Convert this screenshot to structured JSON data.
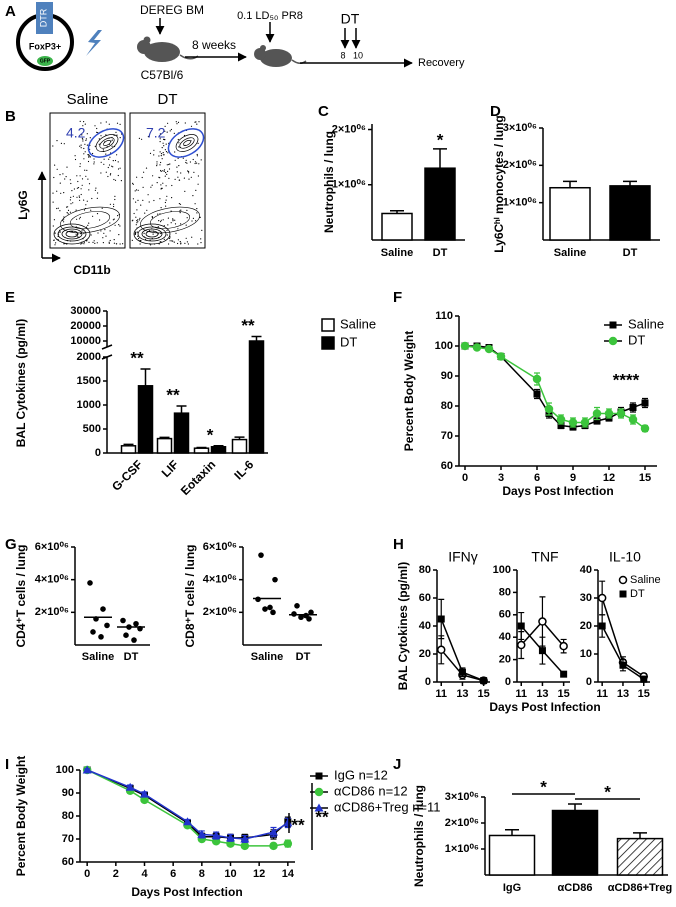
{
  "figure": {
    "panels": [
      "A",
      "B",
      "C",
      "D",
      "E",
      "F",
      "G",
      "H",
      "I",
      "J"
    ]
  },
  "panel_a": {
    "dtr": "DTR",
    "foxp3": "FoxP3+",
    "gfp": "GFP",
    "transfer": "DEREG BM",
    "recipient": "C57Bl/6",
    "interval": "8 weeks",
    "infection": "0.1 LD₅₀ PR8",
    "treatment": "DT",
    "days": [
      "8",
      "10"
    ],
    "outcome": "Recovery"
  },
  "panel_b": {
    "plots": [
      {
        "title": "Saline",
        "gate": 4.2
      },
      {
        "title": "DT",
        "gate": 7.2
      }
    ],
    "y_label": "Ly6G",
    "x_label": "CD11b"
  },
  "chart_data": [
    {
      "type": "bar",
      "y_label": "Neutrophils / lung",
      "categories": [
        "Saline",
        "DT"
      ],
      "values": [
        480000,
        1300000
      ],
      "errors": [
        50000,
        350000
      ],
      "colors": [
        "#ffffff",
        "#000000"
      ],
      "value_annotations": [
        null,
        "*"
      ],
      "ylim": [
        0,
        2100000
      ],
      "yticks": [
        {
          "value": 1000000,
          "label": "1×10⁰⁶"
        },
        {
          "value": 2000000,
          "label": "2×10⁰⁶"
        }
      ]
    },
    {
      "type": "bar",
      "y_label": "Ly6Cʰⁱ monocytes / lung",
      "categories": [
        "Saline",
        "DT"
      ],
      "values": [
        1400000,
        1450000
      ],
      "errors": [
        170000,
        120000
      ],
      "colors": [
        "#ffffff",
        "#000000"
      ],
      "ylim": [
        0,
        3000000
      ],
      "yticks": [
        {
          "value": 1000000,
          "label": "1×10⁰⁶"
        },
        {
          "value": 2000000,
          "label": "2×10⁰⁶"
        },
        {
          "value": 3000000,
          "label": "3×10⁰⁶"
        }
      ]
    },
    {
      "type": "grouped_bar",
      "y_label": "BAL Cytokines (pg/ml)",
      "categories": [
        "G-CSF",
        "LIF",
        "Eotaxin",
        "IL-6"
      ],
      "series": [
        {
          "name": "Saline",
          "color": "#ffffff",
          "values": [
            150,
            300,
            100,
            280
          ],
          "errors": [
            30,
            25,
            15,
            50
          ]
        },
        {
          "name": "DT",
          "color": "#000000",
          "values": [
            1400,
            830,
            130,
            10000
          ],
          "errors": [
            350,
            150,
            20,
            3000
          ]
        }
      ],
      "annotations": [
        "**",
        "**",
        "*",
        "**"
      ],
      "ylim": [
        0,
        30000
      ],
      "ybreak": [
        2000,
        6000
      ],
      "yticks": [
        0,
        500,
        1000,
        1500,
        2000,
        10000,
        20000,
        30000
      ],
      "legend": "right"
    },
    {
      "type": "line",
      "x_label": "Days Post Infection",
      "y_label": "Percent Body Weight",
      "x": [
        0,
        1,
        2,
        3,
        6,
        7,
        8,
        9,
        10,
        11,
        12,
        13,
        14,
        15
      ],
      "series": [
        {
          "name": "Saline",
          "color": "#000000",
          "marker": "square",
          "values": [
            100,
            100,
            99.5,
            96.5,
            84,
            77.5,
            73.5,
            73,
            73.5,
            75,
            76,
            78,
            79.5,
            81
          ],
          "errors": [
            0.5,
            0.5,
            0.5,
            1,
            1.5,
            1.5,
            1,
            1,
            1,
            1,
            1,
            1.5,
            1.5,
            1.5
          ]
        },
        {
          "name": "DT",
          "color": "#3cc43c",
          "marker": "circle",
          "values": [
            100,
            99.5,
            99,
            96.5,
            89,
            79,
            75.5,
            74.5,
            74.5,
            77.5,
            77.5,
            77.5,
            75.5,
            72.5
          ],
          "errors": [
            0.5,
            0.5,
            0.5,
            1,
            2,
            2,
            1.5,
            1.5,
            1.5,
            2,
            1.5,
            1.5,
            1.5,
            1
          ]
        }
      ],
      "xlim": [
        -0.5,
        16
      ],
      "xticks": [
        0,
        3,
        6,
        9,
        12,
        15
      ],
      "ylim": [
        60,
        110
      ],
      "yticks": [
        60,
        70,
        80,
        90,
        100,
        110
      ],
      "legend": "upper right",
      "annotations": [
        "****"
      ]
    },
    {
      "type": "strip",
      "y_label": "CD4⁺T cells / lung",
      "categories": [
        "Saline",
        "DT"
      ],
      "points": [
        [
          3800000,
          2200000,
          1600000,
          1200000,
          800000,
          500000
        ],
        [
          1500000,
          1300000,
          1100000,
          1000000,
          600000,
          300000
        ]
      ],
      "means": [
        1700000,
        1100000
      ],
      "ylim": [
        0,
        6000000
      ],
      "yticks": [
        {
          "value": 2000000,
          "label": "2×10⁰⁶"
        },
        {
          "value": 4000000,
          "label": "4×10⁰⁶"
        },
        {
          "value": 6000000,
          "label": "6×10⁰⁶"
        }
      ]
    },
    {
      "type": "strip",
      "y_label": "CD8⁺T cells / lung",
      "categories": [
        "Saline",
        "DT"
      ],
      "points": [
        [
          5500000,
          4000000,
          2800000,
          2300000,
          2200000,
          2000000
        ],
        [
          2400000,
          2000000,
          1900000,
          1800000,
          1700000,
          1600000
        ]
      ],
      "means": [
        2850000,
        1850000
      ],
      "ylim": [
        0,
        6000000
      ],
      "yticks": [
        {
          "value": 2000000,
          "label": "2×10⁰⁶"
        },
        {
          "value": 4000000,
          "label": "4×10⁰⁶"
        },
        {
          "value": 6000000,
          "label": "6×10⁰⁶"
        }
      ]
    },
    {
      "type": "line",
      "title": "IFNγ",
      "y_label": "BAL Cytokines (pg/ml)",
      "x": [
        11,
        13,
        15
      ],
      "series": [
        {
          "color": "#000000",
          "marker": "open-circle",
          "values": [
            23,
            5,
            1
          ],
          "errors": [
            10,
            3,
            1
          ]
        },
        {
          "color": "#000000",
          "marker": "square",
          "values": [
            45,
            7,
            1
          ],
          "errors": [
            14,
            3,
            0.5
          ]
        }
      ],
      "xlim": [
        10.6,
        15.6
      ],
      "xticks": [
        11,
        13,
        15
      ],
      "ylim": [
        0,
        80
      ],
      "yticks": [
        0,
        20,
        40,
        60,
        80
      ]
    },
    {
      "type": "line",
      "title": "TNF",
      "x_label": "Days Post Infection",
      "x": [
        11,
        13,
        15
      ],
      "series": [
        {
          "color": "#000000",
          "marker": "open-circle",
          "values": [
            33,
            54,
            32
          ],
          "errors": [
            12,
            22,
            6
          ]
        },
        {
          "color": "#000000",
          "marker": "square",
          "values": [
            50,
            28,
            7
          ],
          "errors": [
            12,
            12,
            2
          ]
        }
      ],
      "xlim": [
        10.6,
        15.6
      ],
      "xticks": [
        11,
        13,
        15
      ],
      "ylim": [
        0,
        100
      ],
      "yticks": [
        0,
        20,
        40,
        60,
        80,
        100
      ]
    },
    {
      "type": "line",
      "title": "IL-10",
      "x": [
        11,
        13,
        15
      ],
      "series": [
        {
          "name": "Saline",
          "color": "#000000",
          "marker": "open-circle",
          "values": [
            30,
            7,
            2
          ],
          "errors": [
            6,
            2,
            1
          ]
        },
        {
          "name": "DT",
          "color": "#000000",
          "marker": "square",
          "values": [
            20,
            6,
            1
          ],
          "errors": [
            4,
            2,
            1
          ]
        }
      ],
      "xlim": [
        10.6,
        15.6
      ],
      "xticks": [
        11,
        13,
        15
      ],
      "ylim": [
        0,
        40
      ],
      "yticks": [
        0,
        10,
        20,
        30,
        40
      ],
      "legend": "upper right"
    },
    {
      "type": "line",
      "x_label": "Days Post Infection",
      "y_label": "Percent Body Weight",
      "x": [
        0,
        3,
        4,
        7,
        8,
        9,
        10,
        11,
        13,
        14
      ],
      "series": [
        {
          "name": "IgG n=12",
          "color": "#000000",
          "marker": "square",
          "values": [
            100,
            92,
            89,
            77,
            71,
            71,
            70.5,
            70.5,
            72,
            77.5
          ],
          "errors": [
            0.5,
            1,
            1,
            1,
            1.5,
            1.5,
            1.5,
            1.5,
            2,
            2
          ]
        },
        {
          "name": "αCD86 n=12",
          "color": "#3cc43c",
          "marker": "circle",
          "values": [
            100,
            91,
            87,
            76,
            70,
            69,
            68,
            67,
            67,
            68
          ],
          "errors": [
            0.5,
            1,
            1,
            1,
            1,
            1,
            1,
            1,
            1,
            1.5
          ]
        },
        {
          "name": "αCD86+Treg n=11",
          "color": "#2233cc",
          "marker": "triangle",
          "values": [
            100,
            92.5,
            89.5,
            77.5,
            72,
            71.5,
            70.5,
            70,
            73,
            77
          ],
          "errors": [
            0.5,
            1,
            1,
            1,
            1.5,
            1.5,
            1.5,
            1.5,
            2,
            2
          ]
        }
      ],
      "xlim": [
        -0.5,
        14.5
      ],
      "xticks": [
        0,
        2,
        4,
        6,
        8,
        10,
        12,
        14
      ],
      "ylim": [
        60,
        100
      ],
      "yticks": [
        60,
        70,
        80,
        90,
        100
      ],
      "legend": "upper right",
      "annotations": [
        "**",
        "**"
      ]
    },
    {
      "type": "bar",
      "y_label": "Neutrophils / lung",
      "categories": [
        "IgG",
        "αCD86",
        "αCD86+Treg"
      ],
      "values": [
        1520000,
        2480000,
        1400000
      ],
      "errors": [
        220000,
        250000,
        220000
      ],
      "colors": [
        "#ffffff",
        "#000000",
        "#ffffff"
      ],
      "hatch": [
        false,
        false,
        true
      ],
      "comparisons": [
        {
          "from": "IgG",
          "to": "αCD86",
          "text": "*"
        },
        {
          "from": "αCD86",
          "to": "αCD86+Treg",
          "text": "*"
        }
      ],
      "ylim": [
        0,
        3000000
      ],
      "yticks": [
        {
          "value": 1000000,
          "label": "1×10⁰⁶"
        },
        {
          "value": 2000000,
          "label": "2×10⁰⁶"
        },
        {
          "value": 3000000,
          "label": "3×10⁰⁶"
        }
      ]
    }
  ]
}
